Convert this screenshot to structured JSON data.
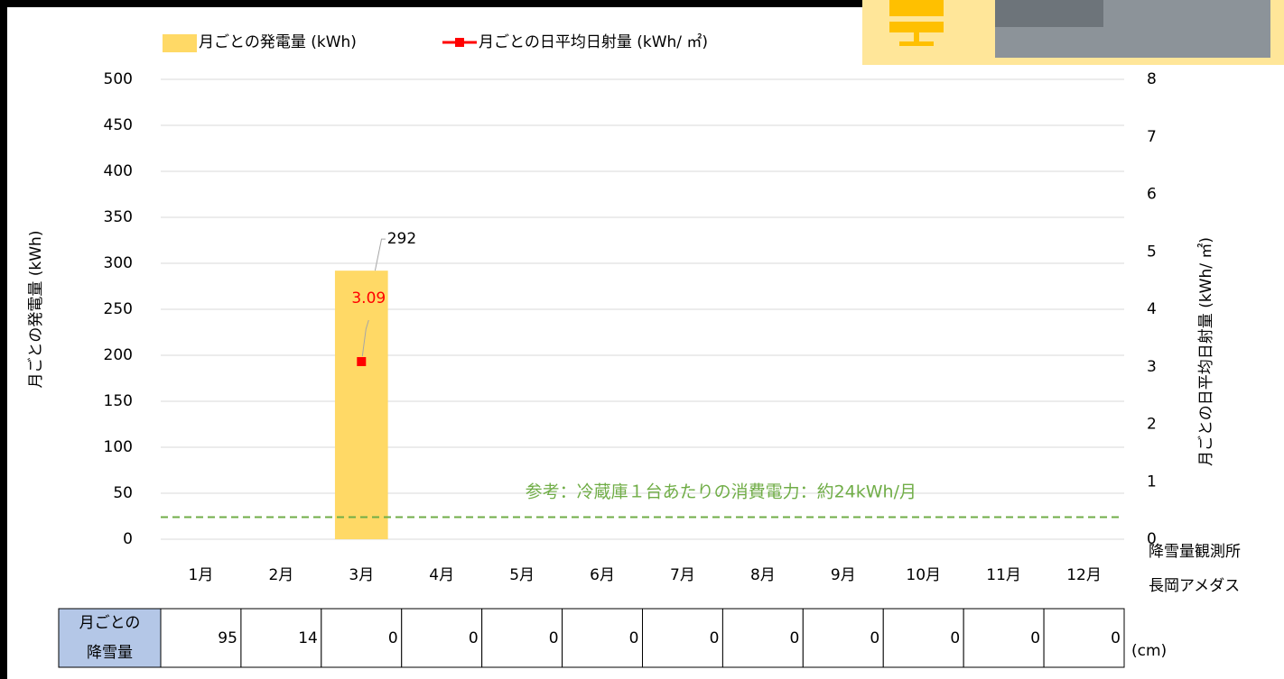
{
  "chart_data": {
    "type": "bar",
    "categories": [
      "1月",
      "2月",
      "3月",
      "4月",
      "5月",
      "6月",
      "7月",
      "8月",
      "9月",
      "10月",
      "11月",
      "12月"
    ],
    "series": [
      {
        "name": "月ごとの発電量 (kWh)",
        "color": "#ffd966",
        "type": "bar",
        "values": [
          null,
          null,
          292,
          null,
          null,
          null,
          null,
          null,
          null,
          null,
          null,
          null
        ]
      },
      {
        "name": "月ごとの日平均日射量 (kWh/ ㎡)",
        "color": "#ff0000",
        "type": "line",
        "axis": "y2",
        "values": [
          null,
          null,
          3.09,
          null,
          null,
          null,
          null,
          null,
          null,
          null,
          null,
          null
        ]
      }
    ],
    "ylabel": "月ごとの発電量 (kWh)",
    "y2label": "月ごとの日平均日射量 (kWh/ ㎡)",
    "ylim": [
      0,
      500
    ],
    "yticks": [
      0,
      50,
      100,
      150,
      200,
      250,
      300,
      350,
      400,
      450,
      500
    ],
    "y2lim": [
      0,
      8
    ],
    "y2ticks": [
      0,
      1,
      2,
      3,
      4,
      5,
      6,
      7,
      8
    ],
    "grid": true,
    "legend": "top",
    "reference_line": {
      "value": 24,
      "label": "参考：冷蔵庫１台あたりの消費電力：約24kWh/月",
      "color": "#70ad47"
    },
    "snowfall": {
      "header": [
        "月ごとの",
        "降雪量"
      ],
      "values": [
        95,
        14,
        0,
        0,
        0,
        0,
        0,
        0,
        0,
        0,
        0,
        0
      ],
      "unit": "(cm)",
      "station": [
        "降雪量観測所",
        "長岡アメダス"
      ]
    }
  }
}
